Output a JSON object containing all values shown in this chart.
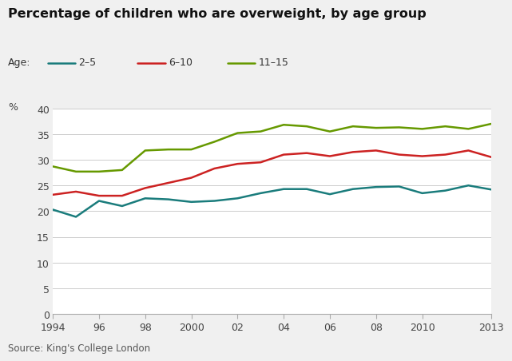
{
  "title": "Percentage of children who are overweight, by age group",
  "ylabel": "%",
  "source": "Source: King's College London",
  "legend_title": "Age:",
  "series": {
    "2-5": {
      "label": "2–5",
      "color": "#1a7c7c",
      "years": [
        1994,
        1995,
        1996,
        1997,
        1998,
        1999,
        2000,
        2001,
        2002,
        2003,
        2004,
        2005,
        2006,
        2007,
        2008,
        2009,
        2010,
        2011,
        2012,
        2013
      ],
      "values": [
        20.3,
        18.9,
        22.0,
        21.0,
        22.5,
        22.3,
        21.8,
        22.0,
        22.5,
        23.5,
        24.3,
        24.3,
        23.3,
        24.3,
        24.7,
        24.8,
        23.5,
        24.0,
        25.0,
        24.2
      ]
    },
    "6-10": {
      "label": "6–10",
      "color": "#cc2222",
      "years": [
        1994,
        1995,
        1996,
        1997,
        1998,
        1999,
        2000,
        2001,
        2002,
        2003,
        2004,
        2005,
        2006,
        2007,
        2008,
        2009,
        2010,
        2011,
        2012,
        2013
      ],
      "values": [
        23.2,
        23.8,
        23.0,
        23.0,
        24.5,
        25.5,
        26.5,
        28.3,
        29.2,
        29.5,
        31.0,
        31.3,
        30.7,
        31.5,
        31.8,
        31.0,
        30.7,
        31.0,
        31.8,
        30.5
      ]
    },
    "11-15": {
      "label": "11–15",
      "color": "#669900",
      "years": [
        1994,
        1995,
        1996,
        1997,
        1998,
        1999,
        2000,
        2001,
        2002,
        2003,
        2004,
        2005,
        2006,
        2007,
        2008,
        2009,
        2010,
        2011,
        2012,
        2013
      ],
      "values": [
        28.7,
        27.7,
        27.7,
        28.0,
        31.8,
        32.0,
        32.0,
        33.5,
        35.2,
        35.5,
        36.8,
        36.5,
        35.5,
        36.5,
        36.2,
        36.3,
        36.0,
        36.5,
        36.0,
        37.0
      ]
    }
  },
  "xlim": [
    1994,
    2013
  ],
  "ylim": [
    0,
    40
  ],
  "yticks": [
    0,
    5,
    10,
    15,
    20,
    25,
    30,
    35,
    40
  ],
  "xticks": [
    1994,
    1996,
    1998,
    2000,
    2002,
    2004,
    2006,
    2008,
    2010,
    2013
  ],
  "xticklabels": [
    "1994",
    "96",
    "98",
    "2000",
    "02",
    "04",
    "06",
    "08",
    "2010",
    "2013"
  ],
  "bg_color": "#f0f0f0",
  "plot_bg_color": "#ffffff",
  "grid_color": "#cccccc",
  "line_width": 1.8,
  "title_fontsize": 11.5,
  "tick_fontsize": 9,
  "label_fontsize": 9
}
